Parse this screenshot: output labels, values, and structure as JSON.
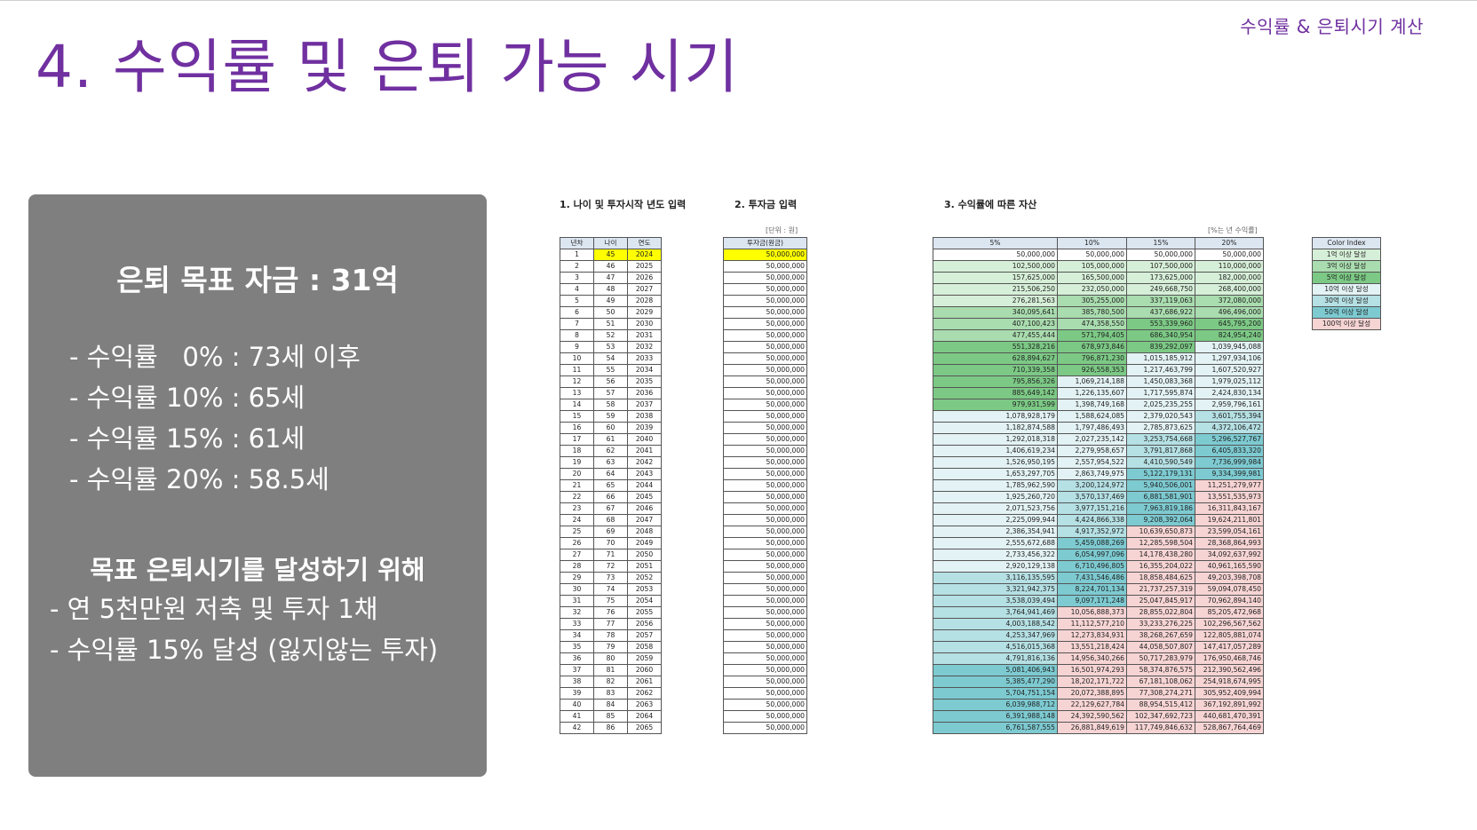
{
  "header": {
    "tag": "수익률 & 은퇴시기 계산",
    "title": "4. 수익률 및 은퇴 가능 시기"
  },
  "summary": {
    "goal": "은퇴 목표 자금 : 31억",
    "rates": [
      "- 수익률   0% : 73세 이후",
      "- 수익률 10% : 65세",
      "- 수익률 15% : 61세",
      "- 수익률 20% : 58.5세"
    ],
    "plan_heading": "목표 은퇴시기를 달성하기 위해",
    "plan": [
      "- 연 5천만원 저축 및 투자 1채",
      "- 수익률 15% 달성 (잃지않는 투자)"
    ]
  },
  "spreadsheet": {
    "section1_title": "1. 나이 및 투자시작 년도 입력",
    "section2_title": "2. 투자금 입력",
    "section3_title": "3. 수익률에 따른 자산",
    "unit_note": "[단위 : 원]",
    "rate_note": "[%는 년 수익률]",
    "table1_headers": [
      "년차",
      "나이",
      "연도"
    ],
    "table2_header": "투자금(원금)",
    "table3_headers": [
      "5%",
      "10%",
      "15%",
      "20%"
    ],
    "invest_amount": "50,000,000",
    "rows": [
      [
        "1",
        "45",
        "2024",
        "50,000,000",
        "50,000,000",
        "50,000,000",
        "50,000,000"
      ],
      [
        "2",
        "46",
        "2025",
        "102,500,000",
        "105,000,000",
        "107,500,000",
        "110,000,000"
      ],
      [
        "3",
        "47",
        "2026",
        "157,625,000",
        "165,500,000",
        "173,625,000",
        "182,000,000"
      ],
      [
        "4",
        "48",
        "2027",
        "215,506,250",
        "232,050,000",
        "249,668,750",
        "268,400,000"
      ],
      [
        "5",
        "49",
        "2028",
        "276,281,563",
        "305,255,000",
        "337,119,063",
        "372,080,000"
      ],
      [
        "6",
        "50",
        "2029",
        "340,095,641",
        "385,780,500",
        "437,686,922",
        "496,496,000"
      ],
      [
        "7",
        "51",
        "2030",
        "407,100,423",
        "474,358,550",
        "553,339,960",
        "645,795,200"
      ],
      [
        "8",
        "52",
        "2031",
        "477,455,444",
        "571,794,405",
        "686,340,954",
        "824,954,240"
      ],
      [
        "9",
        "53",
        "2032",
        "551,328,216",
        "678,973,846",
        "839,292,097",
        "1,039,945,088"
      ],
      [
        "10",
        "54",
        "2033",
        "628,894,627",
        "796,871,230",
        "1,015,185,912",
        "1,297,934,106"
      ],
      [
        "11",
        "55",
        "2034",
        "710,339,358",
        "926,558,353",
        "1,217,463,799",
        "1,607,520,927"
      ],
      [
        "12",
        "56",
        "2035",
        "795,856,326",
        "1,069,214,188",
        "1,450,083,368",
        "1,979,025,112"
      ],
      [
        "13",
        "57",
        "2036",
        "885,649,142",
        "1,226,135,607",
        "1,717,595,874",
        "2,424,830,134"
      ],
      [
        "14",
        "58",
        "2037",
        "979,931,599",
        "1,398,749,168",
        "2,025,235,255",
        "2,959,796,161"
      ],
      [
        "15",
        "59",
        "2038",
        "1,078,928,179",
        "1,588,624,085",
        "2,379,020,543",
        "3,601,755,394"
      ],
      [
        "16",
        "60",
        "2039",
        "1,182,874,588",
        "1,797,486,493",
        "2,785,873,625",
        "4,372,106,472"
      ],
      [
        "17",
        "61",
        "2040",
        "1,292,018,318",
        "2,027,235,142",
        "3,253,754,668",
        "5,296,527,767"
      ],
      [
        "18",
        "62",
        "2041",
        "1,406,619,234",
        "2,279,958,657",
        "3,791,817,868",
        "6,405,833,320"
      ],
      [
        "19",
        "63",
        "2042",
        "1,526,950,195",
        "2,557,954,522",
        "4,410,590,549",
        "7,736,999,984"
      ],
      [
        "20",
        "64",
        "2043",
        "1,653,297,705",
        "2,863,749,975",
        "5,122,179,131",
        "9,334,399,981"
      ],
      [
        "21",
        "65",
        "2044",
        "1,785,962,590",
        "3,200,124,972",
        "5,940,506,001",
        "11,251,279,977"
      ],
      [
        "22",
        "66",
        "2045",
        "1,925,260,720",
        "3,570,137,469",
        "6,881,581,901",
        "13,551,535,973"
      ],
      [
        "23",
        "67",
        "2046",
        "2,071,523,756",
        "3,977,151,216",
        "7,963,819,186",
        "16,311,843,167"
      ],
      [
        "24",
        "68",
        "2047",
        "2,225,099,944",
        "4,424,866,338",
        "9,208,392,064",
        "19,624,211,801"
      ],
      [
        "25",
        "69",
        "2048",
        "2,386,354,941",
        "4,917,352,972",
        "10,639,650,873",
        "23,599,054,161"
      ],
      [
        "26",
        "70",
        "2049",
        "2,555,672,688",
        "5,459,088,269",
        "12,285,598,504",
        "28,368,864,993"
      ],
      [
        "27",
        "71",
        "2050",
        "2,733,456,322",
        "6,054,997,096",
        "14,178,438,280",
        "34,092,637,992"
      ],
      [
        "28",
        "72",
        "2051",
        "2,920,129,138",
        "6,710,496,805",
        "16,355,204,022",
        "40,961,165,590"
      ],
      [
        "29",
        "73",
        "2052",
        "3,116,135,595",
        "7,431,546,486",
        "18,858,484,625",
        "49,203,398,708"
      ],
      [
        "30",
        "74",
        "2053",
        "3,321,942,375",
        "8,224,701,134",
        "21,737,257,319",
        "59,094,078,450"
      ],
      [
        "31",
        "75",
        "2054",
        "3,538,039,494",
        "9,097,171,248",
        "25,047,845,917",
        "70,962,894,140"
      ],
      [
        "32",
        "76",
        "2055",
        "3,764,941,469",
        "10,056,888,373",
        "28,855,022,804",
        "85,205,472,968"
      ],
      [
        "33",
        "77",
        "2056",
        "4,003,188,542",
        "11,112,577,210",
        "33,233,276,225",
        "102,296,567,562"
      ],
      [
        "34",
        "78",
        "2057",
        "4,253,347,969",
        "12,273,834,931",
        "38,268,267,659",
        "122,805,881,074"
      ],
      [
        "35",
        "79",
        "2058",
        "4,516,015,368",
        "13,551,218,424",
        "44,058,507,807",
        "147,417,057,289"
      ],
      [
        "36",
        "80",
        "2059",
        "4,791,816,136",
        "14,956,340,266",
        "50,717,283,979",
        "176,950,468,746"
      ],
      [
        "37",
        "81",
        "2060",
        "5,081,406,943",
        "16,501,974,293",
        "58,374,876,575",
        "212,390,562,496"
      ],
      [
        "38",
        "82",
        "2061",
        "5,385,477,290",
        "18,202,171,722",
        "67,181,108,062",
        "254,918,674,995"
      ],
      [
        "39",
        "83",
        "2062",
        "5,704,751,154",
        "20,072,388,895",
        "77,308,274,271",
        "305,952,409,994"
      ],
      [
        "40",
        "84",
        "2063",
        "6,039,988,712",
        "22,129,627,784",
        "88,954,515,412",
        "367,192,891,992"
      ],
      [
        "41",
        "85",
        "2064",
        "6,391,988,148",
        "24,392,590,562",
        "102,347,692,723",
        "440,681,470,391"
      ],
      [
        "42",
        "86",
        "2065",
        "6,761,587,555",
        "26,881,849,619",
        "117,749,846,632",
        "528,867,764,469"
      ]
    ],
    "legend_title": "Color Index",
    "legend": [
      {
        "label": "1억 이상 달성",
        "color": "#d6efd8"
      },
      {
        "label": "3억 이상 달성",
        "color": "#a9dcae"
      },
      {
        "label": "5억 이상 달성",
        "color": "#7cc985"
      },
      {
        "label": "10억 이상 달성",
        "color": "#e3f2f4"
      },
      {
        "label": "30억 이상 달성",
        "color": "#b5e0e4"
      },
      {
        "label": "50억 이상 달성",
        "color": "#7dcad1"
      },
      {
        "label": "100억 이상 달성",
        "color": "#f7d4d4"
      }
    ]
  }
}
